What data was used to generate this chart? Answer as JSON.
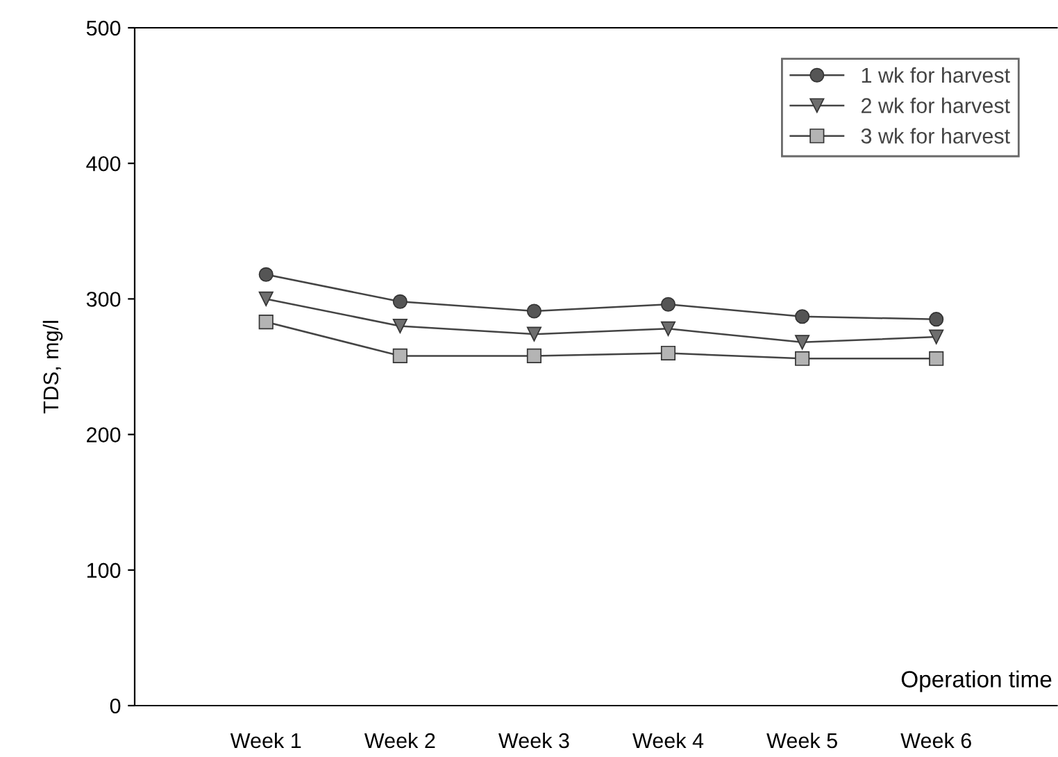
{
  "chart_data": {
    "type": "line",
    "xlabel": "Operation time",
    "ylabel": "TDS, mg/l",
    "categories": [
      "Week 1",
      "Week 2",
      "Week 3",
      "Week 4",
      "Week 5",
      "Week 6"
    ],
    "series": [
      {
        "name": "1 wk for harvest",
        "color": "#555555",
        "marker": "circle",
        "values": [
          318,
          298,
          291,
          296,
          287,
          285
        ]
      },
      {
        "name": "2 wk for harvest",
        "color": "#6e6e6e",
        "marker": "triangle",
        "values": [
          300,
          280,
          274,
          278,
          268,
          272
        ]
      },
      {
        "name": "3 wk for harvest",
        "color": "#b4b4b4",
        "marker": "square",
        "values": [
          283,
          258,
          258,
          260,
          256,
          256
        ]
      }
    ],
    "ylim": [
      0,
      500
    ],
    "yticks": [
      0,
      100,
      200,
      300,
      400,
      500
    ],
    "grid": false,
    "legend": "top right",
    "line_style": "solid"
  }
}
